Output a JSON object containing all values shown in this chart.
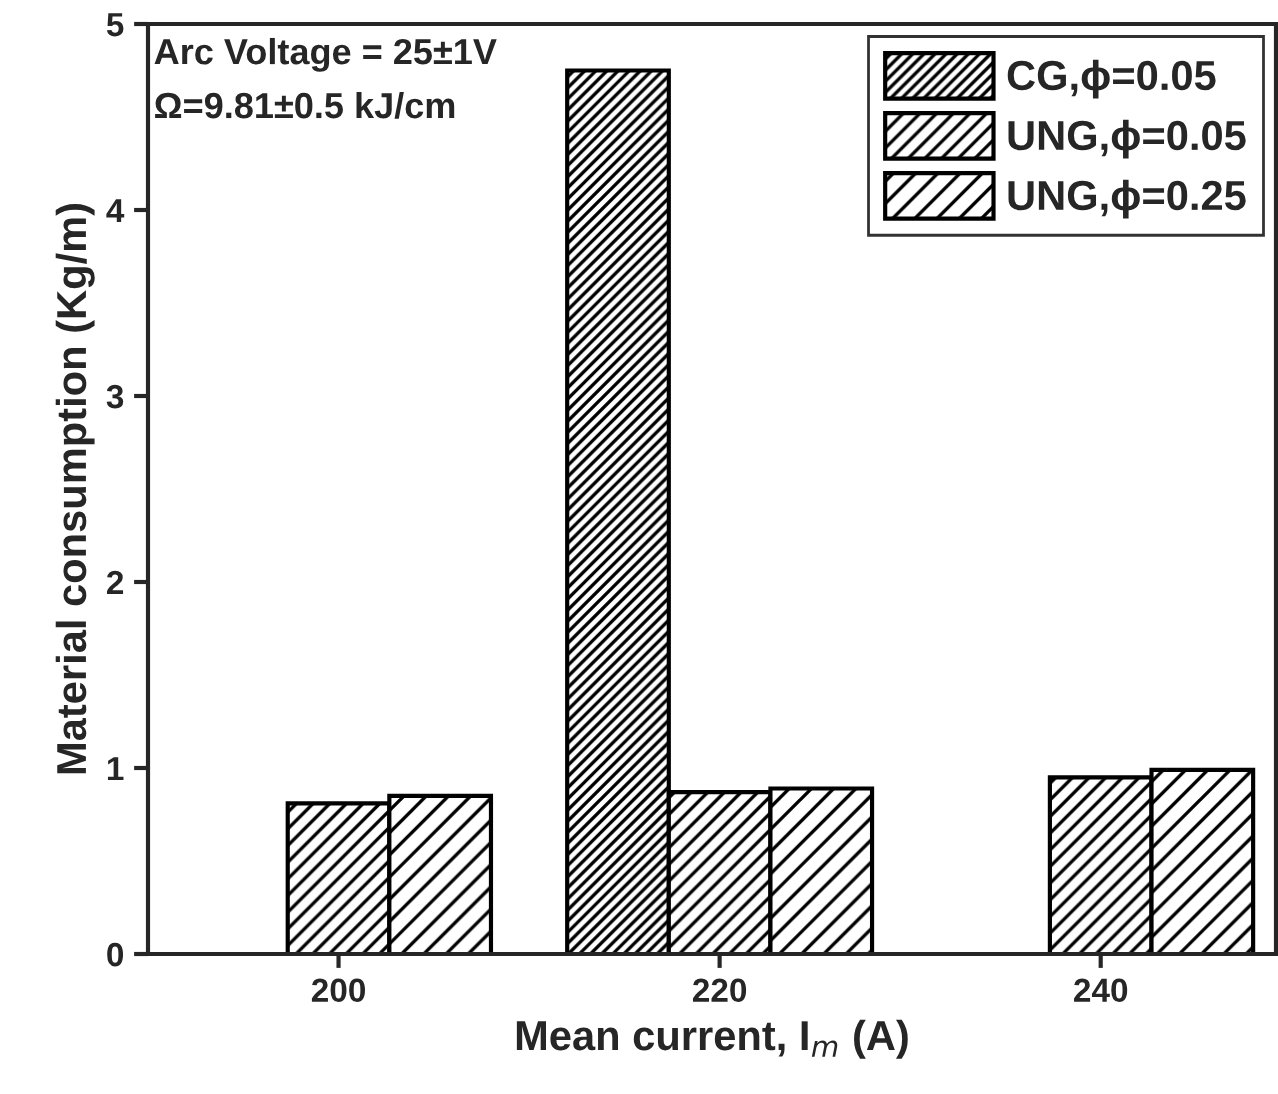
{
  "chart_data": {
    "type": "bar",
    "xlabel": "Mean current, I$_{m}$ (A)",
    "ylabel": "Material consumption (Kg/m)",
    "categories": [
      "200",
      "220",
      "240"
    ],
    "series": [
      {
        "name": "CG,ϕ=0.05",
        "color": "#000000",
        "values": [
          null,
          4.75,
          null
        ]
      },
      {
        "name": "UNG,ϕ=0.05",
        "color": "#000000",
        "values": [
          0.81,
          0.87,
          0.95
        ]
      },
      {
        "name": "UNG,ϕ=0.25",
        "color": "#000000",
        "values": [
          0.85,
          0.89,
          0.99
        ]
      }
    ],
    "ylim": [
      0,
      5
    ],
    "yticks": [
      0,
      1,
      2,
      3,
      4,
      5
    ],
    "annotations": [
      "Arc Voltage = 25±1V",
      "Ω=9.81±0.5 kJ/cm"
    ],
    "grid": false,
    "legend": "top right"
  }
}
